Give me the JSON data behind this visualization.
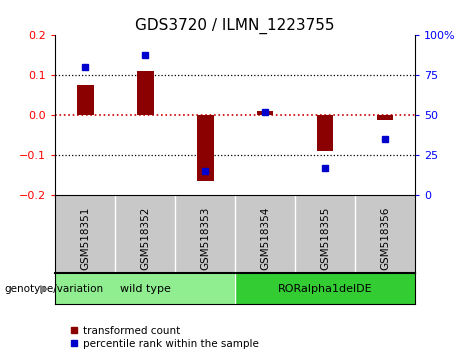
{
  "title": "GDS3720 / ILMN_1223755",
  "samples": [
    "GSM518351",
    "GSM518352",
    "GSM518353",
    "GSM518354",
    "GSM518355",
    "GSM518356"
  ],
  "bar_values": [
    0.075,
    0.11,
    -0.165,
    0.01,
    -0.09,
    -0.012
  ],
  "percentile_values": [
    80,
    88,
    15,
    52,
    17,
    35
  ],
  "ylim_left": [
    -0.2,
    0.2
  ],
  "ylim_right": [
    0,
    100
  ],
  "bar_color": "#8B0000",
  "dot_color": "#0000CC",
  "zero_line_color": "#CC0000",
  "grid_color": "#000000",
  "label_bg_color": "#C8C8C8",
  "group1_color": "#90EE90",
  "group2_color": "#33CC33",
  "groups": [
    {
      "label": "wild type",
      "indices": [
        0,
        1,
        2
      ],
      "color": "#90EE90"
    },
    {
      "label": "RORalpha1delDE",
      "indices": [
        3,
        4,
        5
      ],
      "color": "#33CC33"
    }
  ],
  "group_label": "genotype/variation",
  "legend_bar_label": "transformed count",
  "legend_dot_label": "percentile rank within the sample",
  "title_fontsize": 11,
  "tick_fontsize": 8,
  "label_fontsize": 7.5
}
